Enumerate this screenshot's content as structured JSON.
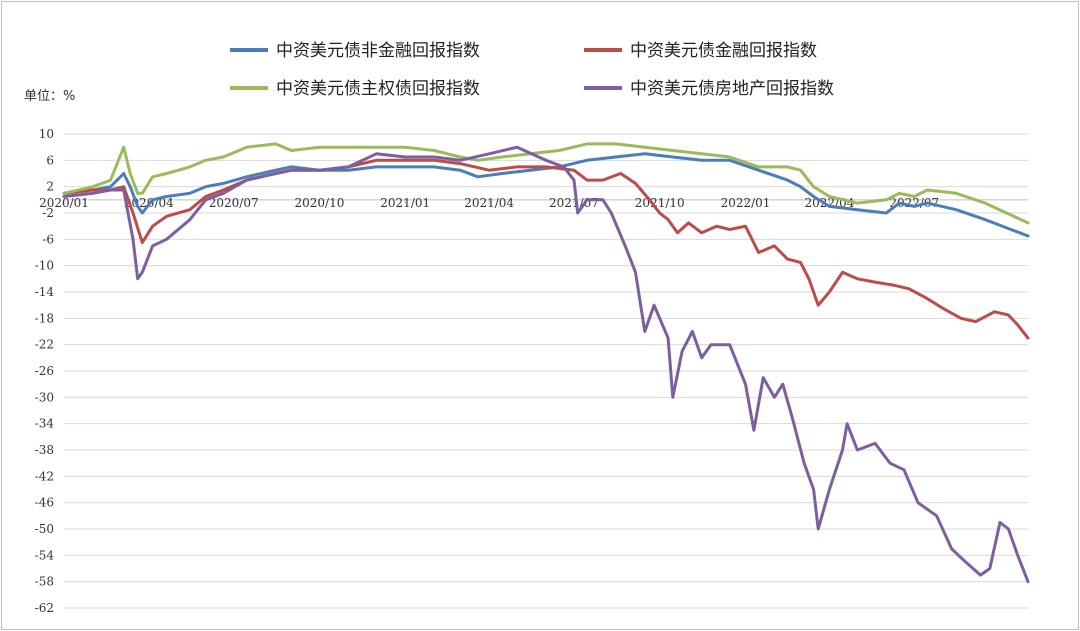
{
  "chart_data": {
    "type": "line",
    "unit_label": "单位：%",
    "ylim": [
      -62,
      10
    ],
    "yticks": [
      10,
      6,
      2,
      -2,
      -6,
      -10,
      -14,
      -18,
      -22,
      -26,
      -30,
      -34,
      -38,
      -42,
      -46,
      -50,
      -54,
      -58,
      -62
    ],
    "x_start": "2020-01-01",
    "x_end": "2022-10-31",
    "xticks": [
      {
        "date": "2020-01-01",
        "label": "2020/01"
      },
      {
        "date": "2020-04-01",
        "label": "2020/04"
      },
      {
        "date": "2020-07-01",
        "label": "2020/07"
      },
      {
        "date": "2020-10-01",
        "label": "2020/10"
      },
      {
        "date": "2021-01-01",
        "label": "2021/01"
      },
      {
        "date": "2021-04-01",
        "label": "2021/04"
      },
      {
        "date": "2021-07-01",
        "label": "2021/07"
      },
      {
        "date": "2021-10-01",
        "label": "2021/10"
      },
      {
        "date": "2022-01-01",
        "label": "2022/01"
      },
      {
        "date": "2022-04-01",
        "label": "2022/04"
      },
      {
        "date": "2022-07-01",
        "label": "2022/07"
      }
    ],
    "grid": true,
    "legend_position": "top",
    "series": [
      {
        "name": "中资美元债非金融回报指数",
        "color": "#4a7ebb",
        "points": [
          [
            "2020-01-01",
            1
          ],
          [
            "2020-02-01",
            1.5
          ],
          [
            "2020-02-20",
            2
          ],
          [
            "2020-03-05",
            4
          ],
          [
            "2020-03-12",
            2
          ],
          [
            "2020-03-20",
            -1
          ],
          [
            "2020-03-25",
            -2
          ],
          [
            "2020-04-05",
            0
          ],
          [
            "2020-04-20",
            0.5
          ],
          [
            "2020-05-15",
            1
          ],
          [
            "2020-06-01",
            2
          ],
          [
            "2020-06-20",
            2.5
          ],
          [
            "2020-07-15",
            3.5
          ],
          [
            "2020-08-15",
            4.5
          ],
          [
            "2020-09-01",
            5
          ],
          [
            "2020-10-01",
            4.5
          ],
          [
            "2020-11-01",
            4.5
          ],
          [
            "2020-12-01",
            5
          ],
          [
            "2021-01-01",
            5
          ],
          [
            "2021-02-01",
            5
          ],
          [
            "2021-03-01",
            4.5
          ],
          [
            "2021-03-20",
            3.5
          ],
          [
            "2021-04-15",
            4
          ],
          [
            "2021-05-15",
            4.5
          ],
          [
            "2021-06-15",
            5
          ],
          [
            "2021-07-15",
            6
          ],
          [
            "2021-08-15",
            6.5
          ],
          [
            "2021-09-15",
            7
          ],
          [
            "2021-10-15",
            6.5
          ],
          [
            "2021-11-15",
            6
          ],
          [
            "2021-12-15",
            6
          ],
          [
            "2022-01-15",
            4.5
          ],
          [
            "2022-02-15",
            3
          ],
          [
            "2022-03-01",
            2
          ],
          [
            "2022-03-15",
            0.5
          ],
          [
            "2022-04-01",
            -1
          ],
          [
            "2022-05-01",
            -1.5
          ],
          [
            "2022-06-01",
            -2
          ],
          [
            "2022-06-15",
            -0.5
          ],
          [
            "2022-07-01",
            -1
          ],
          [
            "2022-07-15",
            -0.5
          ],
          [
            "2022-08-15",
            -1.5
          ],
          [
            "2022-09-15",
            -3
          ],
          [
            "2022-10-31",
            -5.5
          ]
        ]
      },
      {
        "name": "中资美元债金融回报指数",
        "color": "#be4b48",
        "points": [
          [
            "2020-01-01",
            1
          ],
          [
            "2020-02-01",
            1.5
          ],
          [
            "2020-02-20",
            1.5
          ],
          [
            "2020-03-05",
            2
          ],
          [
            "2020-03-15",
            -2
          ],
          [
            "2020-03-25",
            -6.5
          ],
          [
            "2020-04-05",
            -4
          ],
          [
            "2020-04-20",
            -2.5
          ],
          [
            "2020-05-15",
            -1.5
          ],
          [
            "2020-06-01",
            0.5
          ],
          [
            "2020-06-20",
            1.5
          ],
          [
            "2020-07-15",
            3
          ],
          [
            "2020-08-15",
            4
          ],
          [
            "2020-09-01",
            4.5
          ],
          [
            "2020-10-01",
            4.5
          ],
          [
            "2020-11-01",
            5
          ],
          [
            "2020-12-01",
            6
          ],
          [
            "2021-01-01",
            6
          ],
          [
            "2021-02-01",
            6
          ],
          [
            "2021-03-01",
            5.5
          ],
          [
            "2021-04-01",
            4.5
          ],
          [
            "2021-05-01",
            5
          ],
          [
            "2021-06-01",
            5
          ],
          [
            "2021-07-01",
            4.5
          ],
          [
            "2021-07-15",
            3
          ],
          [
            "2021-08-01",
            3
          ],
          [
            "2021-08-20",
            4
          ],
          [
            "2021-09-05",
            2.5
          ],
          [
            "2021-09-20",
            0
          ],
          [
            "2021-10-01",
            -2
          ],
          [
            "2021-10-10",
            -3
          ],
          [
            "2021-10-20",
            -5
          ],
          [
            "2021-11-01",
            -3.5
          ],
          [
            "2021-11-15",
            -5
          ],
          [
            "2021-12-01",
            -4
          ],
          [
            "2021-12-15",
            -4.5
          ],
          [
            "2022-01-01",
            -4
          ],
          [
            "2022-01-15",
            -8
          ],
          [
            "2022-02-01",
            -7
          ],
          [
            "2022-02-15",
            -9
          ],
          [
            "2022-03-01",
            -9.5
          ],
          [
            "2022-03-10",
            -12
          ],
          [
            "2022-03-20",
            -16
          ],
          [
            "2022-04-01",
            -14
          ],
          [
            "2022-04-15",
            -11
          ],
          [
            "2022-05-01",
            -12
          ],
          [
            "2022-05-20",
            -12.5
          ],
          [
            "2022-06-10",
            -13
          ],
          [
            "2022-06-25",
            -13.5
          ],
          [
            "2022-07-15",
            -15
          ],
          [
            "2022-08-01",
            -16.5
          ],
          [
            "2022-08-20",
            -18
          ],
          [
            "2022-09-05",
            -18.5
          ],
          [
            "2022-09-25",
            -17
          ],
          [
            "2022-10-10",
            -17.5
          ],
          [
            "2022-10-20",
            -19
          ],
          [
            "2022-10-31",
            -21
          ]
        ]
      },
      {
        "name": "中资美元债主权债回报指数",
        "color": "#9bbb59",
        "points": [
          [
            "2020-01-01",
            1
          ],
          [
            "2020-02-01",
            2
          ],
          [
            "2020-02-20",
            3
          ],
          [
            "2020-03-05",
            8
          ],
          [
            "2020-03-12",
            4
          ],
          [
            "2020-03-20",
            1
          ],
          [
            "2020-03-25",
            1
          ],
          [
            "2020-04-05",
            3.5
          ],
          [
            "2020-04-20",
            4
          ],
          [
            "2020-05-15",
            5
          ],
          [
            "2020-06-01",
            6
          ],
          [
            "2020-06-20",
            6.5
          ],
          [
            "2020-07-15",
            8
          ],
          [
            "2020-08-15",
            8.5
          ],
          [
            "2020-09-01",
            7.5
          ],
          [
            "2020-10-01",
            8
          ],
          [
            "2020-11-01",
            8
          ],
          [
            "2020-12-01",
            8
          ],
          [
            "2021-01-01",
            8
          ],
          [
            "2021-02-01",
            7.5
          ],
          [
            "2021-03-01",
            6.5
          ],
          [
            "2021-03-20",
            6
          ],
          [
            "2021-04-15",
            6.5
          ],
          [
            "2021-05-15",
            7
          ],
          [
            "2021-06-15",
            7.5
          ],
          [
            "2021-07-15",
            8.5
          ],
          [
            "2021-08-15",
            8.5
          ],
          [
            "2021-09-15",
            8
          ],
          [
            "2021-10-15",
            7.5
          ],
          [
            "2021-11-15",
            7
          ],
          [
            "2021-12-15",
            6.5
          ],
          [
            "2022-01-15",
            5
          ],
          [
            "2022-02-15",
            5
          ],
          [
            "2022-03-01",
            4.5
          ],
          [
            "2022-03-15",
            2
          ],
          [
            "2022-04-01",
            0.5
          ],
          [
            "2022-05-01",
            -0.5
          ],
          [
            "2022-06-01",
            0
          ],
          [
            "2022-06-15",
            1
          ],
          [
            "2022-07-01",
            0.5
          ],
          [
            "2022-07-15",
            1.5
          ],
          [
            "2022-08-15",
            1
          ],
          [
            "2022-09-15",
            -0.5
          ],
          [
            "2022-10-31",
            -3.5
          ]
        ]
      },
      {
        "name": "中资美元债房地产回报指数",
        "color": "#7d5fa0",
        "points": [
          [
            "2020-01-01",
            0.5
          ],
          [
            "2020-02-01",
            1
          ],
          [
            "2020-02-20",
            1.5
          ],
          [
            "2020-03-05",
            1.5
          ],
          [
            "2020-03-15",
            -6
          ],
          [
            "2020-03-20",
            -12
          ],
          [
            "2020-03-25",
            -11
          ],
          [
            "2020-04-05",
            -7
          ],
          [
            "2020-04-20",
            -6
          ],
          [
            "2020-05-15",
            -3
          ],
          [
            "2020-06-01",
            0
          ],
          [
            "2020-06-20",
            1
          ],
          [
            "2020-07-15",
            3
          ],
          [
            "2020-08-15",
            4
          ],
          [
            "2020-09-01",
            4.5
          ],
          [
            "2020-10-01",
            4.5
          ],
          [
            "2020-11-01",
            5
          ],
          [
            "2020-12-01",
            7
          ],
          [
            "2021-01-01",
            6.5
          ],
          [
            "2021-02-01",
            6.5
          ],
          [
            "2021-03-01",
            6
          ],
          [
            "2021-04-01",
            7
          ],
          [
            "2021-05-01",
            8
          ],
          [
            "2021-06-01",
            6
          ],
          [
            "2021-06-20",
            5
          ],
          [
            "2021-07-01",
            3
          ],
          [
            "2021-07-05",
            -2
          ],
          [
            "2021-07-15",
            0
          ],
          [
            "2021-08-01",
            0
          ],
          [
            "2021-08-10",
            -2
          ],
          [
            "2021-08-25",
            -7
          ],
          [
            "2021-09-05",
            -11
          ],
          [
            "2021-09-15",
            -20
          ],
          [
            "2021-09-25",
            -16
          ],
          [
            "2021-10-10",
            -21
          ],
          [
            "2021-10-15",
            -30
          ],
          [
            "2021-10-25",
            -23
          ],
          [
            "2021-11-05",
            -20
          ],
          [
            "2021-11-15",
            -24
          ],
          [
            "2021-11-25",
            -22
          ],
          [
            "2021-12-15",
            -22
          ],
          [
            "2022-01-01",
            -28
          ],
          [
            "2022-01-10",
            -35
          ],
          [
            "2022-01-20",
            -27
          ],
          [
            "2022-02-01",
            -30
          ],
          [
            "2022-02-10",
            -28
          ],
          [
            "2022-02-20",
            -33
          ],
          [
            "2022-03-05",
            -40
          ],
          [
            "2022-03-15",
            -44
          ],
          [
            "2022-03-20",
            -50
          ],
          [
            "2022-04-01",
            -44
          ],
          [
            "2022-04-15",
            -38
          ],
          [
            "2022-04-20",
            -34
          ],
          [
            "2022-05-01",
            -38
          ],
          [
            "2022-05-20",
            -37
          ],
          [
            "2022-06-05",
            -40
          ],
          [
            "2022-06-20",
            -41
          ],
          [
            "2022-07-05",
            -46
          ],
          [
            "2022-07-25",
            -48
          ],
          [
            "2022-08-10",
            -53
          ],
          [
            "2022-08-25",
            -55
          ],
          [
            "2022-09-10",
            -57
          ],
          [
            "2022-09-20",
            -56
          ],
          [
            "2022-10-01",
            -49
          ],
          [
            "2022-10-10",
            -50
          ],
          [
            "2022-10-20",
            -54
          ],
          [
            "2022-10-31",
            -58
          ]
        ]
      }
    ]
  }
}
